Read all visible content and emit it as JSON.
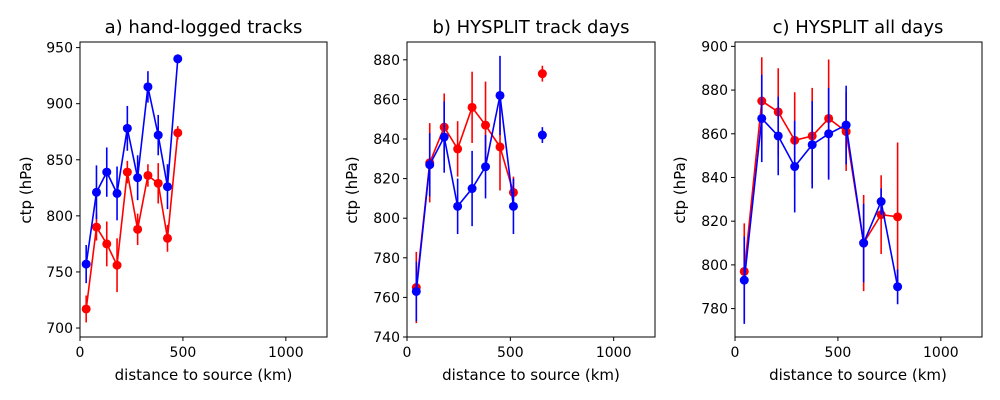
{
  "figure": {
    "colors": {
      "red": "#ff0000",
      "blue": "#0000ff"
    }
  },
  "chart_data": [
    {
      "type": "line",
      "title": "a) hand-logged tracks",
      "xlabel": "distance to source (km)",
      "ylabel": "ctp (hPa)",
      "xlim": [
        0,
        1200
      ],
      "ylim": [
        692,
        955
      ],
      "xticks": [
        0,
        500,
        1000
      ],
      "yticks": [
        700,
        750,
        800,
        850,
        900,
        950
      ],
      "series": [
        {
          "name": "red",
          "color": "#ff0000",
          "x": [
            30,
            80,
            130,
            180,
            230,
            280,
            330,
            380,
            425,
            475
          ],
          "y": [
            717,
            790,
            775,
            756,
            839,
            788,
            836,
            829,
            780,
            874
          ],
          "yerr": [
            12,
            12,
            20,
            24,
            10,
            14,
            10,
            18,
            12,
            6
          ]
        },
        {
          "name": "blue",
          "color": "#0000ff",
          "x": [
            30,
            80,
            130,
            180,
            230,
            280,
            330,
            380,
            425,
            475
          ],
          "y": [
            757,
            821,
            839,
            820,
            878,
            834,
            915,
            872,
            826,
            940
          ],
          "yerr": [
            17,
            24,
            22,
            24,
            20,
            20,
            14,
            18,
            20,
            4
          ]
        }
      ]
    },
    {
      "type": "line",
      "title": "b) HYSPLIT track days",
      "xlabel": "distance to source (km)",
      "ylabel": "ctp (hPa)",
      "xlim": [
        0,
        1200
      ],
      "ylim": [
        740,
        889
      ],
      "xticks": [
        0,
        500,
        1000
      ],
      "yticks": [
        740,
        760,
        780,
        800,
        820,
        840,
        860,
        880
      ],
      "series": [
        {
          "name": "red",
          "color": "#ff0000",
          "x": [
            45,
            110,
            180,
            245,
            315,
            380,
            450,
            515
          ],
          "y": [
            765,
            828,
            846,
            835,
            856,
            847,
            836,
            813
          ],
          "yerr": [
            18,
            20,
            17,
            14,
            18,
            22,
            22,
            8
          ]
        },
        {
          "name": "blue",
          "color": "#0000ff",
          "x": [
            45,
            110,
            180,
            245,
            315,
            380,
            450,
            515
          ],
          "y": [
            763,
            827,
            841,
            806,
            815,
            826,
            862,
            806
          ],
          "yerr": [
            15,
            16,
            18,
            14,
            19,
            16,
            20,
            14
          ]
        },
        {
          "name": "red-isolated",
          "color": "#ff0000",
          "x": [
            655
          ],
          "y": [
            873
          ],
          "yerr": [
            4
          ]
        },
        {
          "name": "blue-isolated",
          "color": "#0000ff",
          "x": [
            655
          ],
          "y": [
            842
          ],
          "yerr": [
            4
          ]
        }
      ]
    },
    {
      "type": "line",
      "title": "c) HYSPLIT all days",
      "xlabel": "distance to source (km)",
      "ylabel": "ctp (hPa)",
      "xlim": [
        0,
        1200
      ],
      "ylim": [
        767,
        902
      ],
      "xticks": [
        0,
        500,
        1000
      ],
      "yticks": [
        780,
        800,
        820,
        840,
        860,
        880,
        900
      ],
      "series": [
        {
          "name": "red",
          "color": "#ff0000",
          "x": [
            45,
            130,
            210,
            290,
            375,
            455,
            540,
            625,
            710,
            790
          ],
          "y": [
            797,
            875,
            870,
            857,
            859,
            867,
            861,
            810,
            823,
            822
          ],
          "yerr": [
            22,
            20,
            20,
            22,
            22,
            27,
            18,
            22,
            18,
            34
          ]
        },
        {
          "name": "blue",
          "color": "#0000ff",
          "x": [
            45,
            130,
            210,
            290,
            375,
            455,
            540,
            625,
            710,
            790
          ],
          "y": [
            793,
            867,
            859,
            845,
            855,
            860,
            864,
            810,
            829,
            790
          ],
          "yerr": [
            20,
            20,
            18,
            21,
            20,
            21,
            18,
            18,
            6,
            8
          ]
        }
      ]
    }
  ]
}
